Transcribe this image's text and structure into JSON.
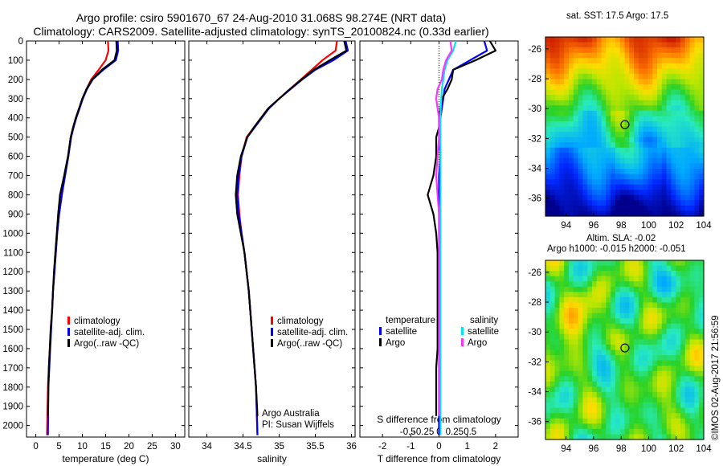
{
  "header": {
    "title_line1": "Argo profile: csiro 5901670_67 24-Aug-2010 31.068S 98.274E (NRT data)",
    "title_line2": "Climatology: CARS2009. Satellite-adjusted climatology: synTS_20100824.nc (0.33d earlier)"
  },
  "colors": {
    "climatology": "#ff0000",
    "satellite": "#0000ff",
    "argo": "#000000",
    "sal_satellite": "#00e5ee",
    "sal_argo": "#ff33ff"
  },
  "y_axis": {
    "ticks": [
      0,
      100,
      200,
      300,
      400,
      500,
      600,
      700,
      800,
      900,
      1000,
      1100,
      1200,
      1300,
      1400,
      1500,
      1600,
      1700,
      1800,
      1900,
      2000
    ],
    "ylim": [
      2060,
      0
    ]
  },
  "panels": {
    "temperature": {
      "xlabel": "temperature (deg C)",
      "xticks": [
        0,
        5,
        10,
        15,
        20,
        25,
        30
      ],
      "xlim": [
        -2,
        32
      ],
      "legend": [
        "climatology",
        "satellite-adj. clim.",
        "Argo(..raw -QC)"
      ]
    },
    "salinity": {
      "xlabel": "salinity",
      "xticks": [
        34,
        34.5,
        35,
        35.5,
        36
      ],
      "xlim": [
        33.75,
        36.05
      ],
      "legend": [
        "climatology",
        "satellite-adj. clim.",
        "Argo(..raw -QC)"
      ],
      "credit1": "Argo Australia",
      "credit2": "PI: Susan Wijffels"
    },
    "difference": {
      "xlabel": "T difference from climatology",
      "xlabel_top": "S difference from climatology",
      "xticks": [
        -2,
        -1,
        0,
        1,
        2
      ],
      "s_ticks": [
        "-0.5",
        "-0.25",
        "0",
        "0.25",
        "0.5"
      ],
      "xlim": [
        -2.8,
        2.8
      ],
      "legend_temp_heading": "temperature",
      "legend_sal_heading": "salinity",
      "legend_temp": [
        "satellite",
        "Argo"
      ],
      "legend_sal": [
        "satellite",
        "Argo"
      ]
    }
  },
  "maps": {
    "sst": {
      "title": "sat. SST: 17.5 Argo: 17.5",
      "xticks": [
        "94",
        "96",
        "98",
        "100",
        "102",
        "104"
      ],
      "yticks": [
        "-26",
        "-28",
        "-30",
        "-32",
        "-34",
        "-36"
      ]
    },
    "sla": {
      "title1": "Altim. SLA: -0.02",
      "title2": "Argo h1000: -0.015 h2000: -0.051",
      "xticks": [
        "94",
        "96",
        "98",
        "100",
        "102",
        "104"
      ],
      "yticks": [
        "-26",
        "-28",
        "-30",
        "-32",
        "-34",
        "-36"
      ]
    },
    "float_position": {
      "lon": 98.274,
      "lat": -31.068
    }
  },
  "stamp": "©IMOS 02-Aug-2017 21:56:59",
  "chart_data": [
    {
      "type": "line",
      "xlabel": "temperature (deg C)",
      "ylabel": "",
      "xlim": [
        -2,
        32
      ],
      "ylim": [
        2060,
        0
      ],
      "series": [
        {
          "name": "climatology",
          "x": [
            15.5,
            15.6,
            15.0,
            13.5,
            11.9,
            10.9,
            10.0,
            9.3,
            8.6,
            8.1,
            7.5,
            7.0,
            6.2,
            5.6,
            5.0,
            4.6,
            4.3,
            4.0,
            3.7,
            3.5,
            3.2,
            3.0,
            2.8,
            2.6,
            2.4
          ],
          "y": [
            0,
            50,
            100,
            150,
            200,
            250,
            300,
            350,
            400,
            450,
            500,
            600,
            700,
            800,
            900,
            1000,
            1100,
            1200,
            1300,
            1400,
            1500,
            1600,
            1700,
            1800,
            2050
          ]
        },
        {
          "name": "satellite-adj. clim.",
          "x": [
            17.6,
            17.7,
            17.2,
            14.5,
            12.2,
            11.0,
            10.1,
            9.4,
            8.7,
            8.1,
            7.6,
            7.0,
            6.3,
            5.6,
            5.0,
            4.6,
            4.3,
            4.0,
            3.7,
            3.5,
            3.3,
            3.1,
            2.9,
            2.7,
            2.6
          ],
          "y": [
            0,
            50,
            100,
            150,
            200,
            250,
            300,
            350,
            400,
            450,
            500,
            600,
            700,
            800,
            900,
            1000,
            1100,
            1200,
            1300,
            1400,
            1500,
            1600,
            1700,
            1800,
            2050
          ]
        },
        {
          "name": "Argo(..raw -QC)",
          "x": [
            17.3,
            17.4,
            16.9,
            14.2,
            12.1,
            10.9,
            10.0,
            9.3,
            8.6,
            8.0,
            7.5,
            6.9,
            6.1,
            5.2,
            4.8,
            4.5,
            4.2,
            3.9,
            3.7,
            3.5,
            3.2,
            3.0,
            2.8,
            2.7,
            2.6
          ],
          "y": [
            0,
            50,
            100,
            150,
            200,
            250,
            300,
            350,
            400,
            450,
            500,
            600,
            700,
            800,
            900,
            1000,
            1100,
            1200,
            1300,
            1400,
            1500,
            1600,
            1700,
            1800,
            1950
          ]
        }
      ]
    },
    {
      "type": "line",
      "xlabel": "salinity",
      "ylabel": "",
      "xlim": [
        33.75,
        36.05
      ],
      "ylim": [
        2060,
        0
      ],
      "series": [
        {
          "name": "climatology",
          "x": [
            35.8,
            35.78,
            35.6,
            35.45,
            35.3,
            35.15,
            35.0,
            34.85,
            34.75,
            34.65,
            34.55,
            34.48,
            34.45,
            34.43,
            34.45,
            34.48,
            34.52,
            34.55,
            34.58,
            34.6,
            34.62,
            34.64,
            34.66,
            34.68,
            34.7
          ],
          "y": [
            0,
            50,
            100,
            150,
            200,
            250,
            300,
            350,
            400,
            450,
            500,
            600,
            700,
            800,
            900,
            1000,
            1100,
            1200,
            1300,
            1400,
            1500,
            1600,
            1700,
            1800,
            2050
          ]
        },
        {
          "name": "satellite-adj. clim.",
          "x": [
            35.92,
            35.95,
            35.75,
            35.5,
            35.32,
            35.16,
            35.0,
            34.86,
            34.76,
            34.66,
            34.56,
            34.48,
            34.44,
            34.42,
            34.44,
            34.48,
            34.52,
            34.55,
            34.58,
            34.6,
            34.62,
            34.64,
            34.66,
            34.68,
            34.7
          ],
          "y": [
            0,
            50,
            100,
            150,
            200,
            250,
            300,
            350,
            400,
            450,
            500,
            600,
            700,
            800,
            900,
            1000,
            1100,
            1200,
            1300,
            1400,
            1500,
            1600,
            1700,
            1800,
            2050
          ]
        },
        {
          "name": "Argo(..raw -QC)",
          "x": [
            35.9,
            35.93,
            35.7,
            35.48,
            35.31,
            35.15,
            35.0,
            34.85,
            34.75,
            34.65,
            34.56,
            34.47,
            34.42,
            34.4,
            34.42,
            34.47,
            34.52,
            34.55,
            34.58,
            34.6,
            34.62,
            34.64,
            34.66,
            34.68,
            34.7
          ],
          "y": [
            0,
            50,
            100,
            150,
            200,
            250,
            300,
            350,
            400,
            450,
            500,
            600,
            700,
            800,
            900,
            1000,
            1100,
            1200,
            1300,
            1400,
            1500,
            1600,
            1700,
            1800,
            1950
          ]
        }
      ]
    },
    {
      "type": "line",
      "xlabel": "T difference from climatology",
      "ylabel": "",
      "xlim": [
        -2.8,
        2.8
      ],
      "ylim": [
        2060,
        0
      ],
      "series": [
        {
          "name": "temperature satellite",
          "x": [
            1.6,
            1.7,
            1.1,
            0.5,
            0.35,
            0.2,
            0.15,
            0.1,
            0.05,
            0.0,
            0.0,
            0.05,
            0.0,
            0.0,
            0.0,
            0.0,
            0.0,
            0.0,
            0.0,
            0.0,
            0.0,
            0.0,
            0.0,
            0.0,
            0.0
          ],
          "y": [
            0,
            50,
            100,
            150,
            200,
            250,
            300,
            350,
            400,
            450,
            500,
            600,
            700,
            800,
            900,
            1000,
            1100,
            1200,
            1300,
            1400,
            1500,
            1600,
            1700,
            1800,
            2050
          ]
        },
        {
          "name": "temperature Argo",
          "x": [
            1.8,
            2.0,
            1.3,
            0.5,
            0.45,
            0.3,
            0.1,
            0.05,
            0.0,
            0.0,
            -0.1,
            -0.1,
            -0.2,
            -0.4,
            -0.2,
            -0.1,
            -0.05,
            -0.05,
            -0.05,
            -0.05,
            -0.05,
            -0.05,
            -0.1,
            -0.1,
            -0.1
          ],
          "y": [
            0,
            50,
            100,
            150,
            200,
            250,
            300,
            350,
            400,
            450,
            500,
            600,
            700,
            800,
            900,
            1000,
            1100,
            1200,
            1300,
            1400,
            1500,
            1600,
            1700,
            1800,
            1950
          ]
        },
        {
          "name": "salinity satellite",
          "x": [
            0.6,
            0.5,
            0.3,
            0.2,
            0.15,
            0.1,
            0.08,
            0.06,
            0.05,
            0.05,
            0.05,
            0.05,
            0.05,
            0.05,
            0.05,
            0.05,
            0.05,
            0.05,
            0.05,
            0.05,
            0.05,
            0.05,
            0.05,
            0.05,
            0.05
          ],
          "y": [
            0,
            50,
            100,
            150,
            200,
            250,
            300,
            350,
            400,
            450,
            500,
            600,
            700,
            800,
            900,
            1000,
            1100,
            1200,
            1300,
            1400,
            1500,
            1600,
            1700,
            1800,
            2050
          ]
        },
        {
          "name": "salinity Argo",
          "x": [
            0.4,
            0.45,
            0.25,
            0.15,
            0.1,
            -0.05,
            -0.1,
            -0.05,
            0.0,
            0.0,
            0.0,
            -0.05,
            -0.1,
            -0.05,
            0.0,
            0.0,
            0.0,
            0.0,
            0.0,
            0.0,
            0.0,
            0.0,
            0.0,
            0.0,
            0.0
          ],
          "y": [
            0,
            50,
            100,
            150,
            200,
            250,
            300,
            350,
            400,
            450,
            500,
            600,
            700,
            800,
            900,
            1000,
            1100,
            1200,
            1300,
            1400,
            1500,
            1600,
            1700,
            1800,
            1950
          ]
        }
      ]
    }
  ]
}
